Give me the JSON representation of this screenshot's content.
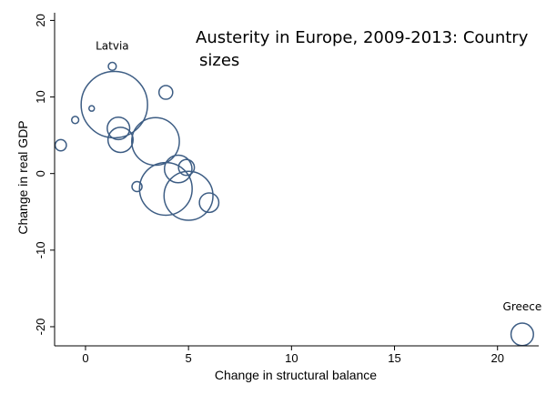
{
  "chart_data": {
    "type": "scatter",
    "title_lines": [
      "Austerity in Europe, 2009-2013: Country",
      "sizes"
    ],
    "xlabel": "Change in structural balance",
    "ylabel": "Change in real GDP",
    "xlim": [
      -1.5,
      22
    ],
    "ylim": [
      -22.5,
      21
    ],
    "xticks": [
      0,
      5,
      10,
      15,
      20
    ],
    "yticks": [
      -20,
      -10,
      0,
      10,
      20
    ],
    "xtick_labels": [
      "0",
      "5",
      "10",
      "15",
      "20"
    ],
    "ytick_labels": [
      "-20",
      "-10",
      "0",
      "10",
      "20"
    ],
    "grid": false,
    "bubble_color": "#3d5d84",
    "points": [
      {
        "x": -1.2,
        "y": 3.7,
        "size": 10,
        "label": ""
      },
      {
        "x": -0.5,
        "y": 7.0,
        "size": 4,
        "label": ""
      },
      {
        "x": 0.3,
        "y": 8.5,
        "size": 1.5,
        "label": ""
      },
      {
        "x": 1.3,
        "y": 14.0,
        "size": 5,
        "label": "Latvia"
      },
      {
        "x": 1.4,
        "y": 9.0,
        "size": 350,
        "label": ""
      },
      {
        "x": 1.6,
        "y": 5.9,
        "size": 40,
        "label": ""
      },
      {
        "x": 1.7,
        "y": 4.4,
        "size": 50,
        "label": ""
      },
      {
        "x": 2.5,
        "y": -1.7,
        "size": 8,
        "label": ""
      },
      {
        "x": 3.4,
        "y": 4.2,
        "size": 180,
        "label": ""
      },
      {
        "x": 3.9,
        "y": 10.6,
        "size": 15,
        "label": ""
      },
      {
        "x": 3.9,
        "y": -2.0,
        "size": 220,
        "label": ""
      },
      {
        "x": 4.5,
        "y": 0.6,
        "size": 60,
        "label": ""
      },
      {
        "x": 4.9,
        "y": 0.8,
        "size": 20,
        "label": ""
      },
      {
        "x": 5.0,
        "y": -2.9,
        "size": 190,
        "label": ""
      },
      {
        "x": 6.0,
        "y": -3.8,
        "size": 30,
        "label": ""
      },
      {
        "x": 21.2,
        "y": -21.0,
        "size": 40,
        "label": "Greece"
      }
    ]
  }
}
